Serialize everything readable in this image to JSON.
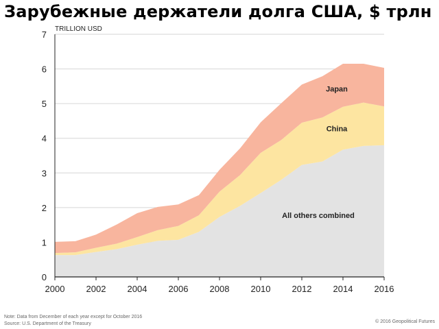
{
  "title": "Зарубежные держатели долга США, $ трлн",
  "note": "Note: Data from December of each year except for October 2016",
  "source": "Source: U.S. Department of the Treasury",
  "credit": "© 2016 Geopolitical Futures",
  "colors": {
    "others": "#e3e3e3",
    "china": "#fde5a1",
    "japan": "#f8b59e",
    "grid": "#d6d6d6",
    "axis": "#222222",
    "text": "#222222"
  },
  "chart_data": {
    "type": "area",
    "stacked": true,
    "unit_label": "TRILLION USD",
    "x": [
      2000,
      2001,
      2002,
      2003,
      2004,
      2005,
      2006,
      2007,
      2008,
      2009,
      2010,
      2011,
      2012,
      2013,
      2014,
      2015,
      2016
    ],
    "x_ticks": [
      "2000",
      "2002",
      "2004",
      "2006",
      "2008",
      "2010",
      "2012",
      "2014",
      "2016"
    ],
    "y_ticks": [
      "0",
      "1",
      "2",
      "3",
      "4",
      "5",
      "6",
      "7"
    ],
    "ylim": [
      0,
      7
    ],
    "grid": true,
    "series": [
      {
        "name": "All others combined",
        "color_key": "others",
        "values": [
          0.63,
          0.63,
          0.72,
          0.8,
          0.93,
          1.04,
          1.07,
          1.3,
          1.73,
          2.05,
          2.42,
          2.8,
          3.23,
          3.33,
          3.67,
          3.78,
          3.8
        ]
      },
      {
        "name": "China",
        "color_key": "china",
        "values": [
          0.06,
          0.08,
          0.12,
          0.16,
          0.22,
          0.31,
          0.4,
          0.48,
          0.73,
          0.89,
          1.16,
          1.15,
          1.22,
          1.27,
          1.24,
          1.25,
          1.12
        ]
      },
      {
        "name": "Japan",
        "color_key": "japan",
        "values": [
          0.32,
          0.32,
          0.38,
          0.55,
          0.69,
          0.67,
          0.62,
          0.58,
          0.63,
          0.77,
          0.88,
          1.06,
          1.1,
          1.19,
          1.24,
          1.12,
          1.11
        ]
      }
    ],
    "labels": [
      {
        "text": "All others combined",
        "series": "All others combined",
        "x": 2012.8,
        "y": 1.7
      },
      {
        "text": "China",
        "series": "China",
        "x": 2013.7,
        "y": 4.2
      },
      {
        "text": "Japan",
        "series": "Japan",
        "x": 2013.7,
        "y": 5.35
      }
    ]
  }
}
